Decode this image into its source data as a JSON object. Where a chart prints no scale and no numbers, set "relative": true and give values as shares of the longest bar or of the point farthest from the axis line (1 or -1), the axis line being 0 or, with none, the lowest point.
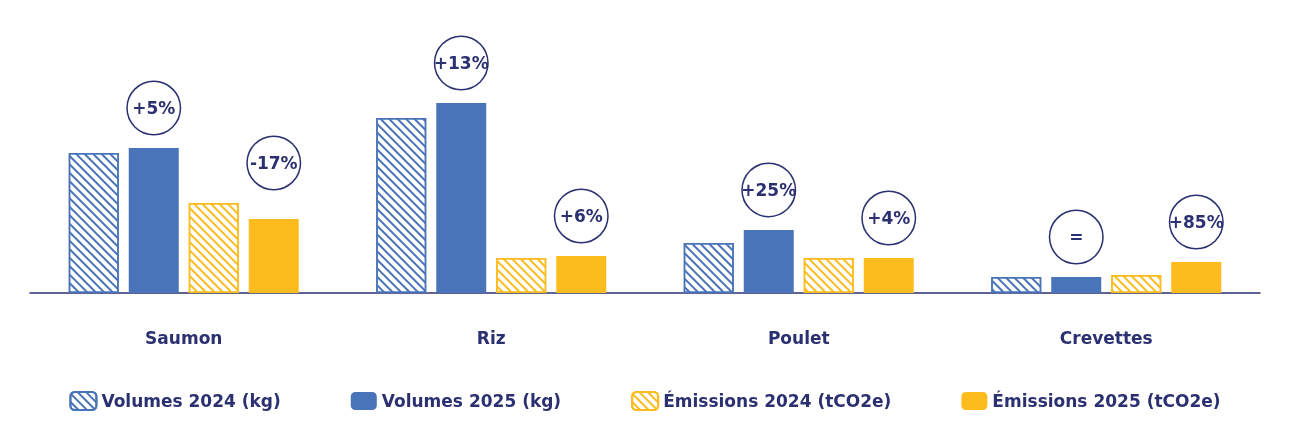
{
  "chart_data": {
    "type": "bar",
    "relative": true,
    "categories": [
      "Saumon",
      "Riz",
      "Poulet",
      "Crevettes"
    ],
    "series": [
      {
        "name": "Volumes 2024 (kg)",
        "color": "#4a74b9",
        "values": [
          0.737,
          0.921,
          0.263,
          0.084
        ]
      },
      {
        "name": "Volumes 2025 (kg)",
        "color": "#4a74b9",
        "values": [
          0.763,
          1,
          0.332,
          0.084
        ]
      },
      {
        "name": "Émissions 2024 (tCO2e)",
        "color": "#fdbc1e",
        "values": [
          0.474,
          0.184,
          0.184,
          0.095
        ]
      },
      {
        "name": "Émissions 2025 (tCO2e)",
        "color": "#fdbc1e",
        "values": [
          0.389,
          0.195,
          0.184,
          0.163
        ]
      }
    ],
    "annotations": [
      "+5%",
      "-17%",
      "+13%",
      "+6%",
      "+25%",
      "+4%",
      "=",
      "+85%"
    ],
    "legend": "bottom"
  }
}
